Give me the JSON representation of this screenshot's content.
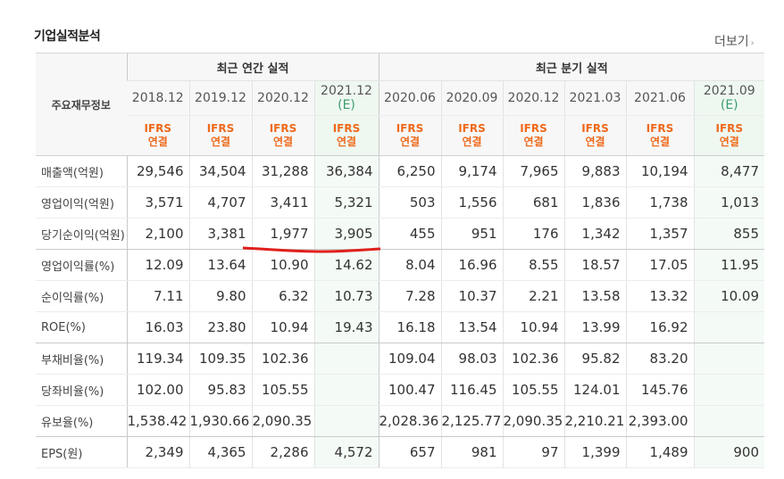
{
  "title": "기업실적분석",
  "more": {
    "label": "더보기",
    "chev": "›"
  },
  "colors": {
    "ifrs": "#ee6a1c",
    "estimate": "#3c9d6d",
    "underline": "#e0201c"
  },
  "header": {
    "label": "주요재무정보",
    "annual_label": "최근 연간 실적",
    "quarter_label": "최근 분기 실적",
    "periods": [
      {
        "date": "2018.12",
        "est": ""
      },
      {
        "date": "2019.12",
        "est": ""
      },
      {
        "date": "2020.12",
        "est": ""
      },
      {
        "date": "2021.12",
        "est": "(E)"
      },
      {
        "date": "2020.06",
        "est": ""
      },
      {
        "date": "2020.09",
        "est": ""
      },
      {
        "date": "2020.12",
        "est": ""
      },
      {
        "date": "2021.03",
        "est": ""
      },
      {
        "date": "2021.06",
        "est": ""
      },
      {
        "date": "2021.09",
        "est": "(E)"
      }
    ],
    "ifrs_line1": "IFRS",
    "ifrs_line2": "연결"
  },
  "rows": [
    {
      "label": "매출액(억원)",
      "values": [
        "29,546",
        "34,504",
        "31,288",
        "36,384",
        "6,250",
        "9,174",
        "7,965",
        "9,883",
        "10,194",
        "8,477"
      ]
    },
    {
      "label": "영업이익(억원)",
      "values": [
        "3,571",
        "4,707",
        "3,411",
        "5,321",
        "503",
        "1,556",
        "681",
        "1,836",
        "1,738",
        "1,013"
      ]
    },
    {
      "label": "당기순이익(억원)",
      "values": [
        "2,100",
        "3,381",
        "1,977",
        "3,905",
        "455",
        "951",
        "176",
        "1,342",
        "1,357",
        "855"
      ]
    },
    {
      "label": "영업이익률(%)",
      "values": [
        "12.09",
        "13.64",
        "10.90",
        "14.62",
        "8.04",
        "16.96",
        "8.55",
        "18.57",
        "17.05",
        "11.95"
      ]
    },
    {
      "label": "순이익률(%)",
      "values": [
        "7.11",
        "9.80",
        "6.32",
        "10.73",
        "7.28",
        "10.37",
        "2.21",
        "13.58",
        "13.32",
        "10.09"
      ]
    },
    {
      "label": "ROE(%)",
      "values": [
        "16.03",
        "23.80",
        "10.94",
        "19.43",
        "16.18",
        "13.54",
        "10.94",
        "13.99",
        "16.92",
        ""
      ]
    },
    {
      "label": "부채비율(%)",
      "values": [
        "119.34",
        "109.35",
        "102.36",
        "",
        "109.04",
        "98.03",
        "102.36",
        "95.82",
        "83.20",
        ""
      ]
    },
    {
      "label": "당좌비율(%)",
      "values": [
        "102.00",
        "95.83",
        "105.55",
        "",
        "100.47",
        "116.45",
        "105.55",
        "124.01",
        "145.76",
        ""
      ]
    },
    {
      "label": "유보율(%)",
      "values": [
        "1,538.42",
        "1,930.66",
        "2,090.35",
        "",
        "2,028.36",
        "2,125.77",
        "2,090.35",
        "2,210.21",
        "2,393.00",
        ""
      ]
    },
    {
      "label": "EPS(원)",
      "values": [
        "2,349",
        "4,365",
        "2,286",
        "4,572",
        "657",
        "981",
        "97",
        "1,399",
        "1,489",
        "900"
      ]
    }
  ]
}
